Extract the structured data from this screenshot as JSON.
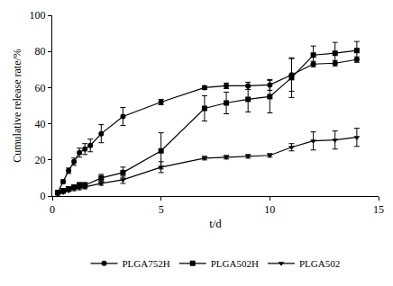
{
  "chart_data": {
    "type": "line",
    "x_label": "t/d",
    "y_label": "Cumulative release rate/%",
    "xlim": [
      0,
      15
    ],
    "xticks": [
      0,
      5,
      10,
      15
    ],
    "ylim": [
      0,
      100
    ],
    "yticks": [
      0,
      20,
      40,
      60,
      80,
      100
    ],
    "grid": false,
    "legend": "bottom",
    "series": [
      {
        "name": "PLGA752H",
        "color": "#000000",
        "marker": "circle",
        "x": [
          0.25,
          0.5,
          0.75,
          1,
          1.25,
          1.5,
          1.75,
          2.25,
          3.25,
          5,
          7,
          8,
          9,
          10,
          11,
          12,
          13,
          14
        ],
        "values": [
          2,
          8,
          14,
          19,
          24,
          26,
          28,
          34.5,
          44,
          52,
          60,
          61,
          61,
          61.5,
          67,
          73,
          73.5,
          75.5
        ],
        "errors": [
          0.5,
          1,
          1.5,
          2,
          2.5,
          3,
          3.5,
          5,
          5,
          1.5,
          1,
          1.5,
          2,
          3,
          9,
          1.5,
          1.5,
          1.5
        ]
      },
      {
        "name": "PLGA502H",
        "color": "#000000",
        "marker": "square",
        "x": [
          0.25,
          0.5,
          0.75,
          1,
          1.25,
          1.5,
          2.25,
          3.25,
          5,
          7,
          8,
          9,
          10,
          11,
          12,
          13,
          14
        ],
        "values": [
          2,
          3,
          4,
          5,
          6,
          6,
          10,
          13,
          25,
          48.5,
          51.5,
          53.5,
          55,
          65.5,
          78,
          79,
          80.5
        ],
        "errors": [
          0.5,
          0.5,
          1,
          1,
          1.5,
          1.5,
          2,
          3,
          10,
          7,
          6,
          7,
          9,
          11,
          5,
          6,
          5
        ]
      },
      {
        "name": "PLGA502",
        "color": "#000000",
        "marker": "triangle-down",
        "x": [
          0.25,
          0.5,
          0.75,
          1,
          1.25,
          1.5,
          2.25,
          3.25,
          5,
          7,
          8,
          9,
          10,
          11,
          12,
          13,
          14
        ],
        "values": [
          1,
          2,
          3,
          4,
          4.5,
          5,
          7,
          9,
          16,
          21,
          21.5,
          22,
          22.5,
          27,
          30.5,
          31,
          32.5
        ],
        "errors": [
          0.5,
          0.5,
          0.5,
          1,
          1,
          1,
          1,
          2,
          3,
          1,
          1,
          1,
          1,
          2,
          5,
          5,
          5
        ]
      }
    ]
  }
}
